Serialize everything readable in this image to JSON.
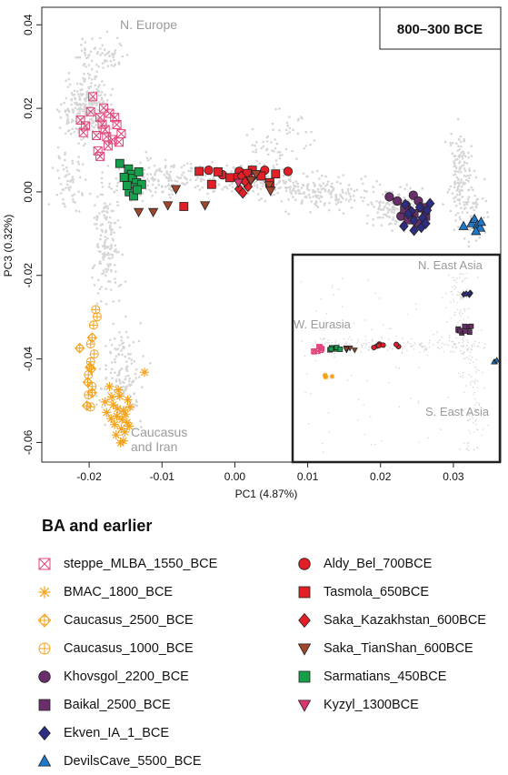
{
  "chart_data": {
    "type": "scatter",
    "title": "800–300 BCE",
    "xlabel": "PC1 (4.87%)",
    "ylabel": "PC3 (0.32%)",
    "xlim": [
      -0.0265,
      0.0365
    ],
    "ylim": [
      -0.0647,
      0.0442
    ],
    "x_ticks": [
      -0.02,
      -0.01,
      0.0,
      0.01,
      0.02,
      0.03
    ],
    "x_tick_labels": [
      "-0.02",
      "-0.01",
      "0.00",
      "0.01",
      "0.02",
      "0.03"
    ],
    "y_ticks": [
      0.04,
      0.02,
      0.0,
      -0.02,
      -0.04,
      -0.06
    ],
    "y_tick_labels": [
      "0.04",
      "0.02",
      "0.00",
      "-0.02",
      "-0.04",
      "-0.06"
    ],
    "grid": false,
    "region_labels": [
      "N. Europe",
      "Caucasus and Iran"
    ],
    "inset_labels": [
      "N. East Asia",
      "W. Eurasia",
      "S. East Asia"
    ],
    "legend_title": "BA and earlier",
    "series": [
      {
        "name": "steppe_MLBA_1550_BCE",
        "marker": "boxcross",
        "color": "#e0457b",
        "points": [
          [
            -0.0205,
            0.0158
          ],
          [
            -0.0198,
            0.0192
          ],
          [
            -0.019,
            0.0135
          ],
          [
            -0.0185,
            0.0178
          ],
          [
            -0.0178,
            0.0149
          ],
          [
            -0.0172,
            0.0188
          ],
          [
            -0.0168,
            0.0125
          ],
          [
            -0.0162,
            0.0161
          ],
          [
            -0.0156,
            0.0139
          ],
          [
            -0.0195,
            0.0228
          ],
          [
            -0.018,
            0.0201
          ],
          [
            -0.0174,
            0.011
          ],
          [
            -0.0188,
            0.0098
          ],
          [
            -0.0165,
            0.0178
          ],
          [
            -0.0208,
            0.0142
          ],
          [
            -0.0182,
            0.0162
          ],
          [
            -0.0176,
            0.0132
          ],
          [
            -0.0212,
            0.0172
          ],
          [
            -0.0159,
            0.0119
          ],
          [
            -0.0185,
            0.0085
          ]
        ]
      },
      {
        "name": "BMAC_1800_BCE",
        "marker": "asterisk",
        "color": "#f5a31c",
        "points": [
          [
            -0.0172,
            -0.0466
          ],
          [
            -0.0167,
            -0.051
          ],
          [
            -0.0162,
            -0.0537
          ],
          [
            -0.0158,
            -0.0489
          ],
          [
            -0.0153,
            -0.0523
          ],
          [
            -0.0148,
            -0.0552
          ],
          [
            -0.0156,
            -0.0567
          ],
          [
            -0.0163,
            -0.0582
          ],
          [
            -0.0151,
            -0.0575
          ],
          [
            -0.0147,
            -0.0498
          ],
          [
            -0.017,
            -0.0543
          ],
          [
            -0.0176,
            -0.0528
          ],
          [
            -0.0157,
            -0.0601
          ],
          [
            -0.0145,
            -0.0561
          ],
          [
            -0.016,
            -0.0474
          ],
          [
            -0.0165,
            -0.0557
          ],
          [
            -0.0153,
            -0.0596
          ],
          [
            -0.0169,
            -0.0491
          ],
          [
            -0.015,
            -0.0532
          ],
          [
            -0.0144,
            -0.0515
          ],
          [
            -0.0178,
            -0.0503
          ],
          [
            -0.0124,
            -0.0432
          ],
          [
            -0.0155,
            -0.0545
          ],
          [
            -0.0161,
            -0.0519
          ]
        ]
      },
      {
        "name": "Caucasus_2500_BCE",
        "marker": "circleplus-diamond",
        "color": "#f5a31c",
        "points": [
          [
            -0.0213,
            -0.0374
          ],
          [
            -0.0196,
            -0.0349
          ],
          [
            -0.0199,
            -0.042
          ],
          [
            -0.0202,
            -0.0456
          ],
          [
            -0.0196,
            -0.0481
          ],
          [
            -0.0203,
            -0.0512
          ],
          [
            -0.0197,
            -0.0424
          ]
        ]
      },
      {
        "name": "Caucasus_1000_BCE",
        "marker": "circleplus",
        "color": "#f5a31c",
        "points": [
          [
            -0.0191,
            -0.0282
          ],
          [
            -0.0189,
            -0.0299
          ],
          [
            -0.0194,
            -0.0319
          ],
          [
            -0.0198,
            -0.0364
          ],
          [
            -0.0193,
            -0.0388
          ],
          [
            -0.0198,
            -0.0407
          ],
          [
            -0.0201,
            -0.0438
          ],
          [
            -0.0196,
            -0.0466
          ],
          [
            -0.0201,
            -0.0486
          ],
          [
            -0.0198,
            -0.0515
          ]
        ]
      },
      {
        "name": "Khovsgol_2200_BCE",
        "marker": "circle",
        "color": "#6a2f6b",
        "points": [
          [
            0.0212,
            -0.0012
          ],
          [
            0.0223,
            -0.0022
          ],
          [
            0.0235,
            -0.0032
          ],
          [
            0.0245,
            -0.0008
          ],
          [
            0.024,
            -0.0045
          ],
          [
            0.0252,
            -0.0022
          ],
          [
            0.0228,
            -0.0058
          ]
        ]
      },
      {
        "name": "Baikal_2500_BCE",
        "marker": "square",
        "color": "#6a2f6b",
        "points": [
          [
            0.0233,
            -0.0042
          ],
          [
            0.0246,
            -0.0052
          ],
          [
            0.0258,
            -0.0038
          ],
          [
            0.0238,
            -0.0067
          ],
          [
            0.0251,
            -0.0075
          ],
          [
            0.0262,
            -0.0058
          ]
        ]
      },
      {
        "name": "Ekven_IA_1_BCE",
        "marker": "diamond",
        "color": "#2d2d82",
        "points": [
          [
            0.0234,
            -0.003
          ],
          [
            0.0242,
            -0.0047
          ],
          [
            0.0254,
            -0.0037
          ],
          [
            0.0258,
            -0.0062
          ],
          [
            0.0264,
            -0.0044
          ],
          [
            0.0246,
            -0.0068
          ],
          [
            0.0268,
            -0.0028
          ],
          [
            0.0232,
            -0.0082
          ],
          [
            0.0246,
            -0.0092
          ],
          [
            0.0256,
            -0.0085
          ],
          [
            0.0238,
            -0.0053
          ],
          [
            0.0262,
            -0.0076
          ]
        ]
      },
      {
        "name": "DevilsCave_5500_BCE",
        "marker": "triangle",
        "color": "#1f78c8",
        "points": [
          [
            0.0314,
            -0.0082
          ],
          [
            0.0325,
            -0.0075
          ],
          [
            0.0329,
            -0.0065
          ],
          [
            0.0333,
            -0.0079
          ],
          [
            0.0337,
            -0.0086
          ],
          [
            0.0331,
            -0.0094
          ],
          [
            0.0338,
            -0.0072
          ]
        ]
      }
    ],
    "featured_series": [
      {
        "name": "Aldy_Bel_700BCE",
        "marker": "circle",
        "color": "#e21e26",
        "points": [
          [
            -0.0036,
            0.0052
          ],
          [
            -0.0017,
            0.0041
          ],
          [
            0.0006,
            0.0049
          ],
          [
            0.0014,
            0.0027
          ],
          [
            0.0041,
            0.0052
          ],
          [
            0.0073,
            0.0049
          ],
          [
            0.0002,
            0.0035
          ]
        ]
      },
      {
        "name": "Tasmola_650BCE",
        "marker": "square",
        "color": "#e21e26",
        "points": [
          [
            -0.0023,
            0.0048
          ],
          [
            -0.0007,
            0.0034
          ],
          [
            0.0024,
            0.0052
          ],
          [
            0.0036,
            0.0038
          ],
          [
            0.0056,
            0.0043
          ],
          [
            -0.0032,
            0.0018
          ],
          [
            -0.007,
            -0.0035
          ],
          [
            0.0048,
            0.0022
          ],
          [
            -0.0049,
            0.0049
          ],
          [
            0.0017,
            0.0044
          ]
        ]
      },
      {
        "name": "Saka_Kazakhstan_600BCE",
        "marker": "diamond",
        "color": "#e21e26",
        "points": [
          [
            0.0006,
            0.0007
          ],
          [
            0.0011,
            -0.0003
          ],
          [
            0.0018,
            0.0013
          ],
          [
            0.0014,
            0.0025
          ],
          [
            0.0009,
            0.0038
          ],
          [
            0.0022,
            0.0031
          ]
        ]
      },
      {
        "name": "Saka_TianShan_600BCE",
        "marker": "triangle-down",
        "color": "#a0442c",
        "points": [
          [
            -0.0132,
            -0.0048
          ],
          [
            -0.0112,
            -0.0048
          ],
          [
            -0.0092,
            -0.0032
          ],
          [
            -0.0081,
            0.0007
          ],
          [
            -0.0041,
            -0.0032
          ],
          [
            0.0022,
            0.0028
          ],
          [
            0.0047,
            0.0016
          ],
          [
            0.0049,
            0.0003
          ],
          [
            0.0029,
            0.0043
          ]
        ]
      },
      {
        "name": "Sarmatians_450BCE",
        "marker": "square",
        "color": "#16a04b",
        "points": [
          [
            -0.0158,
            0.0068
          ],
          [
            -0.0146,
            0.0055
          ],
          [
            -0.0142,
            0.0042
          ],
          [
            -0.014,
            0.0032
          ],
          [
            -0.0135,
            0.0022
          ],
          [
            -0.0138,
            0.001
          ],
          [
            -0.0145,
            0.0
          ],
          [
            -0.0139,
            -0.001
          ],
          [
            -0.0152,
            0.0035
          ],
          [
            -0.0132,
            0.0048
          ],
          [
            -0.0128,
            0.0018
          ],
          [
            -0.0148,
            0.0015
          ],
          [
            -0.0134,
            0.0005
          ]
        ]
      },
      {
        "name": "Kyzyl_1300BCE",
        "marker": "triangle-down",
        "color": "#d8366c",
        "points": [
          [
            0.0005,
            0.0022
          ]
        ]
      }
    ]
  }
}
